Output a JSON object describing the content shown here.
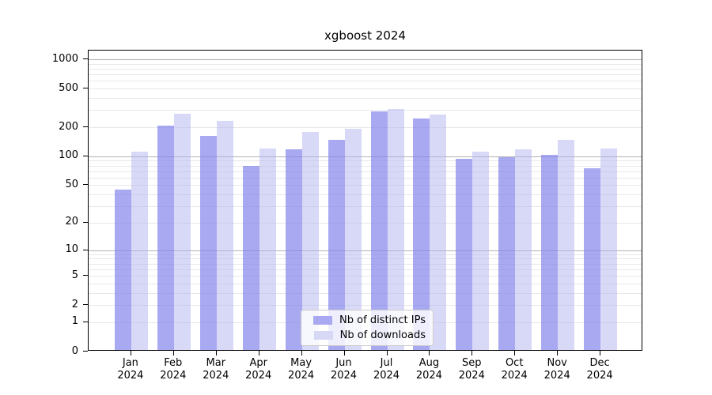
{
  "chart_data": {
    "type": "bar",
    "title": "xgboost 2024",
    "categories": [
      "Jan",
      "Feb",
      "Mar",
      "Apr",
      "May",
      "Jun",
      "Jul",
      "Aug",
      "Sep",
      "Oct",
      "Nov",
      "Dec"
    ],
    "category_year": "2024",
    "series": [
      {
        "name": "Nb of distinct IPs",
        "values": [
          43,
          199,
          156,
          77,
          113,
          142,
          280,
          238,
          90,
          94,
          100,
          72
        ],
        "fill": "rgba(133,133,236,0.70)",
        "legend_color": "#a9a9f1"
      },
      {
        "name": "Nb of downloads",
        "values": [
          107,
          265,
          222,
          117,
          173,
          185,
          298,
          260,
          107,
          114,
          144,
          117
        ],
        "fill": "rgba(177,177,239,0.50)",
        "legend_color": "#d7d7f6"
      }
    ],
    "yticks": [
      0,
      1,
      2,
      5,
      10,
      20,
      50,
      100,
      200,
      500,
      1000
    ],
    "yscale": "log1p",
    "ylim": [
      0,
      1200
    ],
    "grid": true,
    "legend_position": "lower center",
    "colors": {
      "major_grid": "#b3b3b3",
      "minor_grid": "#e8e8e8",
      "axis": "#000000",
      "text": "#000000"
    }
  }
}
